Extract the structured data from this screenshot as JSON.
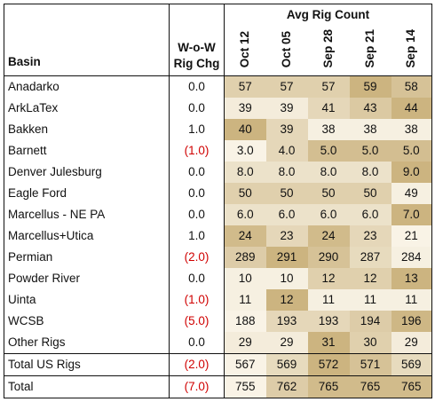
{
  "header": {
    "basin_label": "Basin",
    "chg_label_line1": "W-o-W",
    "chg_label_line2": "Rig Chg",
    "group_label": "Avg Rig Count",
    "dates": [
      "Oct 12",
      "Oct 05",
      "Sep 28",
      "Sep 21",
      "Sep 14"
    ]
  },
  "colors": {
    "heat_low": "#fbf7ec",
    "heat_high": "#c9b07a",
    "negative": "#d00000",
    "border": "#111111"
  },
  "rows": [
    {
      "basin": "Anadarko",
      "chg": "0.0",
      "neg": false,
      "values": [
        "57",
        "57",
        "57",
        "59",
        "58"
      ],
      "heat": [
        0.55,
        0.55,
        0.55,
        0.95,
        0.75
      ]
    },
    {
      "basin": "ArkLaTex",
      "chg": "0.0",
      "neg": false,
      "values": [
        "39",
        "39",
        "41",
        "43",
        "44"
      ],
      "heat": [
        0.15,
        0.15,
        0.45,
        0.65,
        0.95
      ]
    },
    {
      "basin": "Bakken",
      "chg": "1.0",
      "neg": false,
      "values": [
        "40",
        "39",
        "38",
        "38",
        "38"
      ],
      "heat": [
        0.95,
        0.45,
        0.1,
        0.1,
        0.1
      ]
    },
    {
      "basin": "Barnett",
      "chg": "(1.0)",
      "neg": true,
      "values": [
        "3.0",
        "4.0",
        "5.0",
        "5.0",
        "5.0"
      ],
      "heat": [
        0.05,
        0.45,
        0.8,
        0.8,
        0.8
      ]
    },
    {
      "basin": "Denver Julesburg",
      "chg": "0.0",
      "neg": false,
      "values": [
        "8.0",
        "8.0",
        "8.0",
        "8.0",
        "9.0"
      ],
      "heat": [
        0.3,
        0.3,
        0.3,
        0.3,
        0.95
      ]
    },
    {
      "basin": "Eagle Ford",
      "chg": "0.0",
      "neg": false,
      "values": [
        "50",
        "50",
        "50",
        "50",
        "49"
      ],
      "heat": [
        0.55,
        0.55,
        0.55,
        0.55,
        0.1
      ]
    },
    {
      "basin": "Marcellus - NE PA",
      "chg": "0.0",
      "neg": false,
      "values": [
        "6.0",
        "6.0",
        "6.0",
        "6.0",
        "7.0"
      ],
      "heat": [
        0.3,
        0.3,
        0.3,
        0.3,
        0.95
      ]
    },
    {
      "basin": "Marcellus+Utica",
      "chg": "1.0",
      "neg": false,
      "values": [
        "24",
        "23",
        "24",
        "23",
        "21"
      ],
      "heat": [
        0.85,
        0.45,
        0.85,
        0.45,
        0.05
      ]
    },
    {
      "basin": "Permian",
      "chg": "(2.0)",
      "neg": true,
      "values": [
        "289",
        "291",
        "290",
        "287",
        "284"
      ],
      "heat": [
        0.6,
        0.95,
        0.75,
        0.4,
        0.1
      ]
    },
    {
      "basin": "Powder River",
      "chg": "0.0",
      "neg": false,
      "values": [
        "10",
        "10",
        "12",
        "12",
        "13"
      ],
      "heat": [
        0.1,
        0.1,
        0.55,
        0.55,
        0.95
      ]
    },
    {
      "basin": "Uinta",
      "chg": "(1.0)",
      "neg": true,
      "values": [
        "11",
        "12",
        "11",
        "11",
        "11"
      ],
      "heat": [
        0.1,
        0.95,
        0.1,
        0.1,
        0.1
      ]
    },
    {
      "basin": "WCSB",
      "chg": "(5.0)",
      "neg": true,
      "values": [
        "188",
        "193",
        "193",
        "194",
        "196"
      ],
      "heat": [
        0.05,
        0.45,
        0.45,
        0.6,
        0.9
      ]
    },
    {
      "basin": "Other Rigs",
      "chg": "0.0",
      "neg": false,
      "values": [
        "29",
        "29",
        "31",
        "30",
        "29"
      ],
      "heat": [
        0.15,
        0.15,
        0.95,
        0.55,
        0.15
      ]
    }
  ],
  "subtotal": {
    "basin": "Total US Rigs",
    "chg": "(2.0)",
    "neg": true,
    "values": [
      "567",
      "569",
      "572",
      "571",
      "569"
    ],
    "heat": [
      0.05,
      0.4,
      0.95,
      0.75,
      0.4
    ]
  },
  "total": {
    "basin": "Total",
    "chg": "(7.0)",
    "neg": true,
    "values": [
      "755",
      "762",
      "765",
      "765",
      "765"
    ],
    "heat": [
      0.05,
      0.6,
      0.85,
      0.85,
      0.85
    ]
  }
}
